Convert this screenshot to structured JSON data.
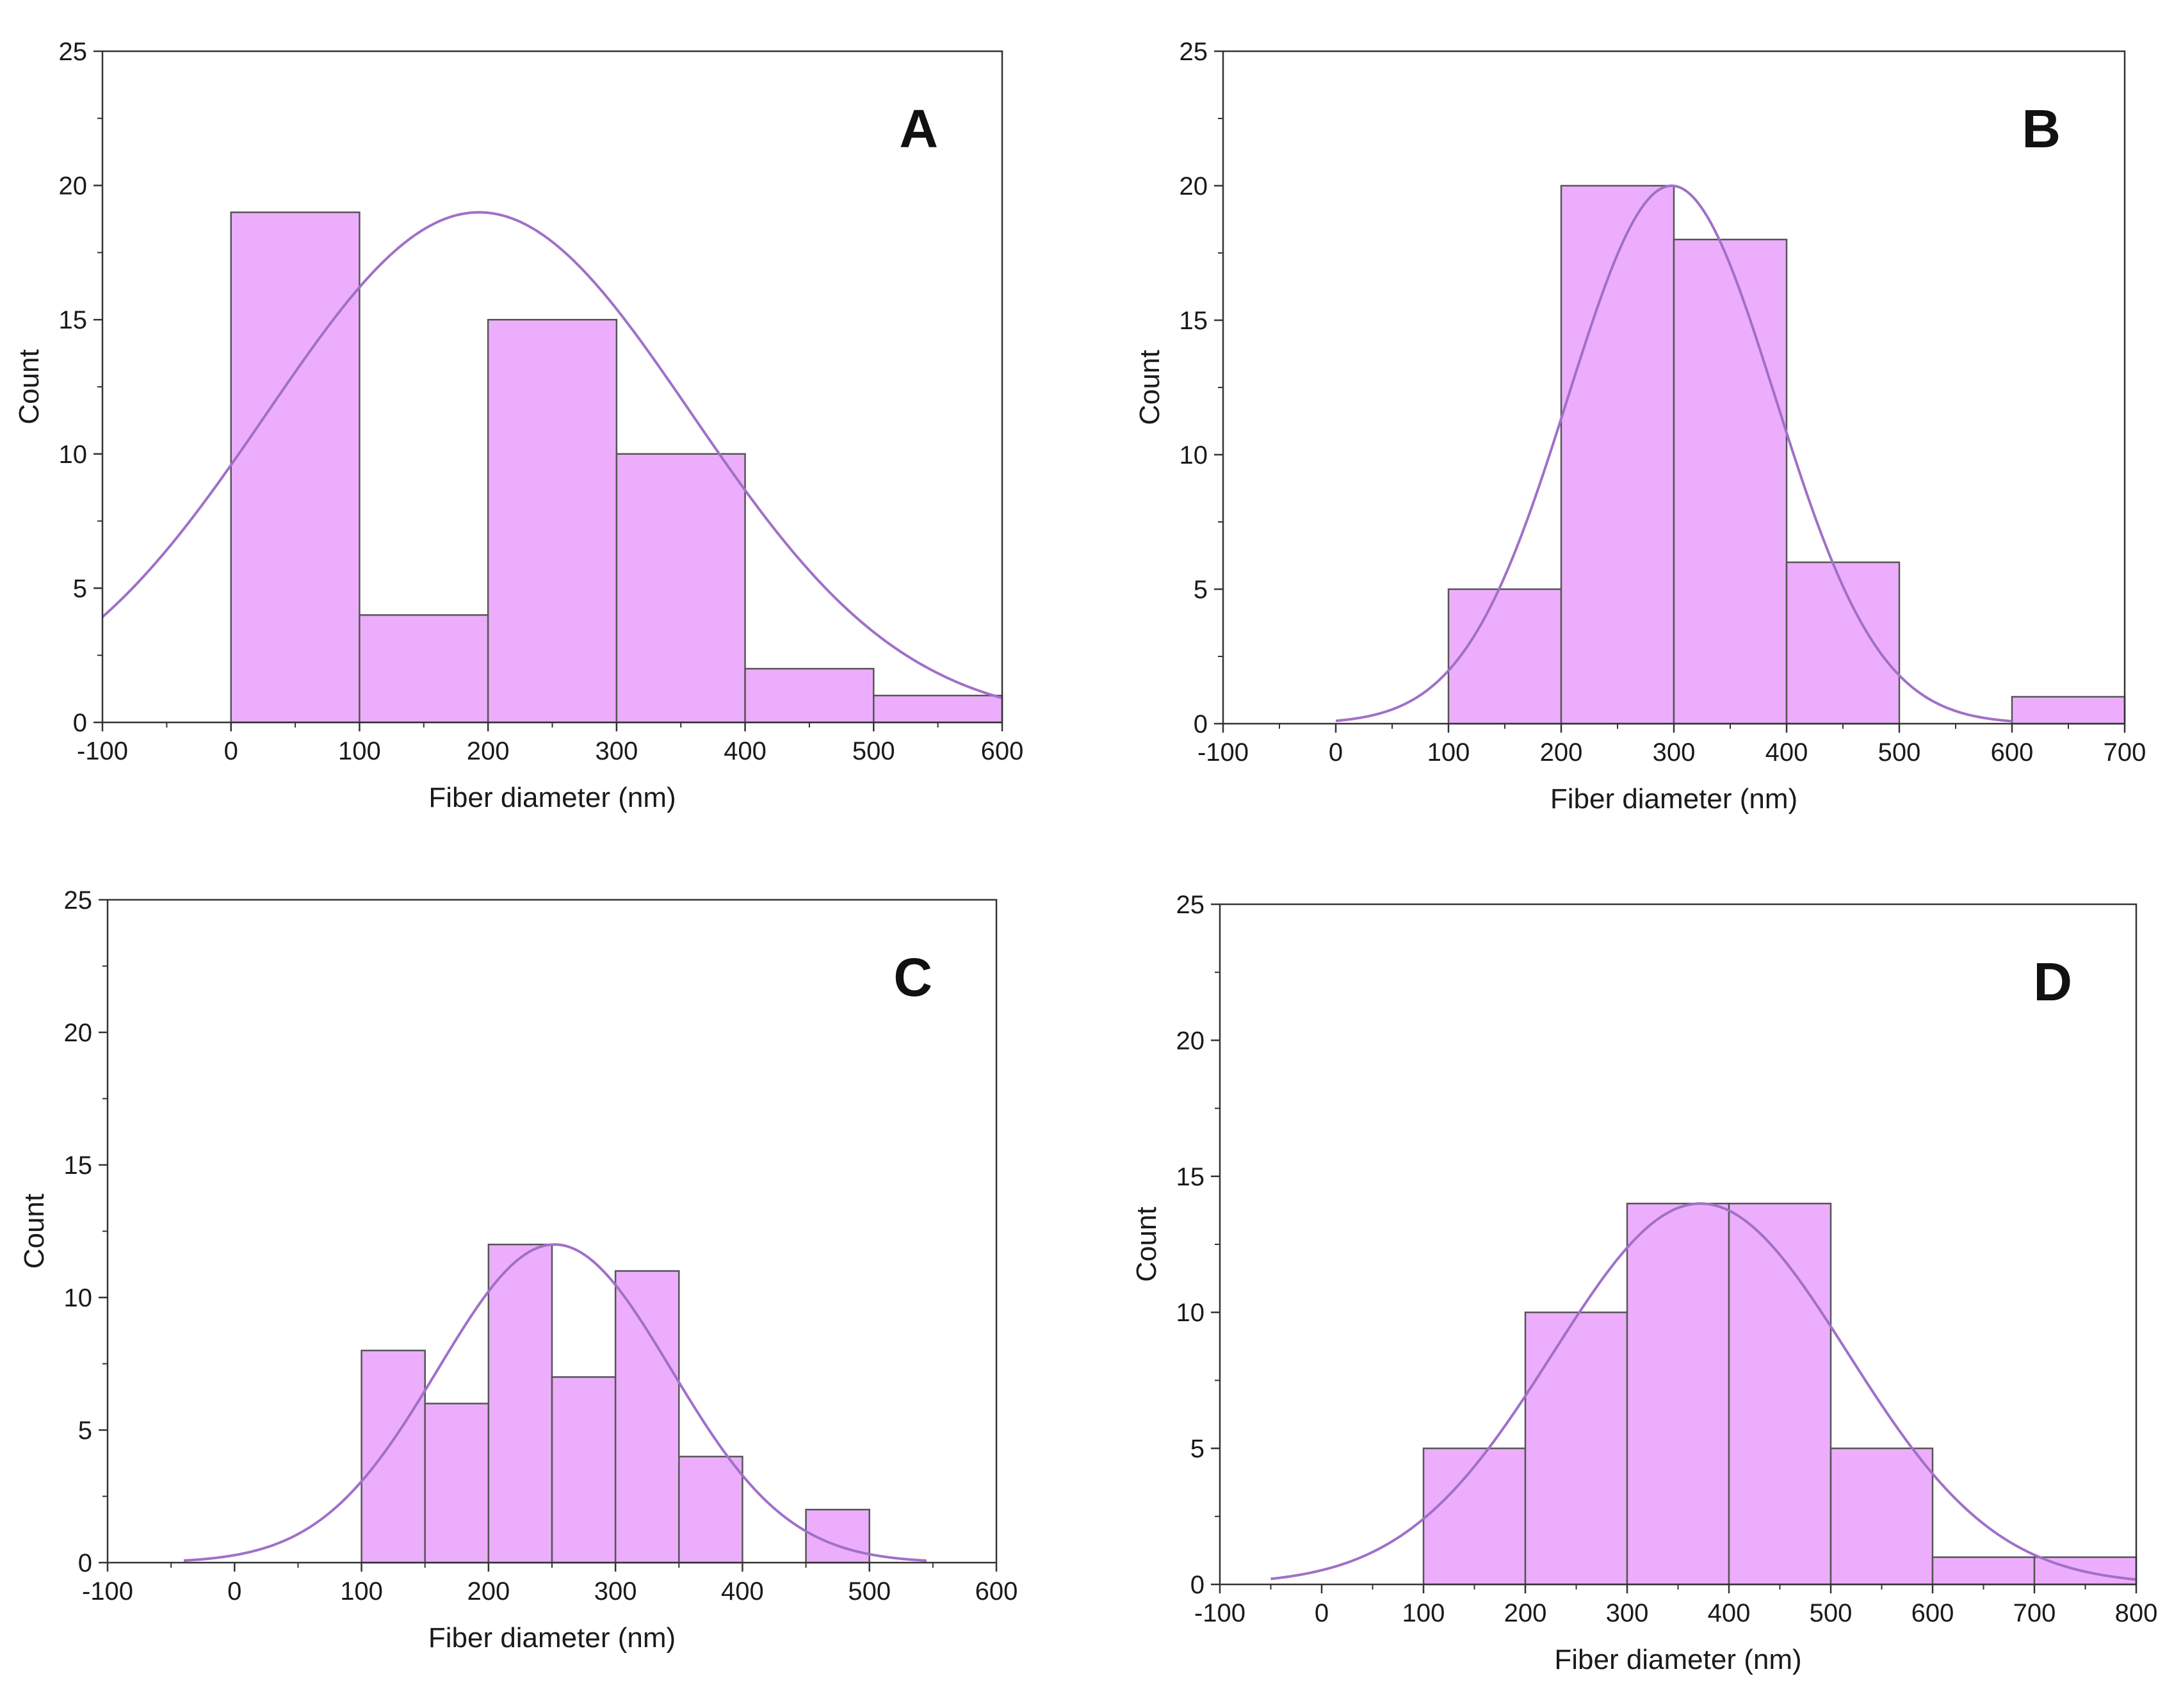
{
  "colors": {
    "bar_fill": "#ECAEFC",
    "bar_stroke": "#555555",
    "fit_curve": "#A070C8",
    "axis": "#333333"
  },
  "chart_data": [
    {
      "type": "bar",
      "panel_label": "A",
      "xlabel": "Fiber diameter (nm)",
      "ylabel": "Count",
      "xlim": [
        -100,
        600
      ],
      "ylim": [
        0,
        25
      ],
      "xticks": [
        "-100",
        "0",
        "100",
        "200",
        "300",
        "400",
        "500",
        "600"
      ],
      "yticks": [
        "0",
        "5",
        "10",
        "15",
        "20",
        "25"
      ],
      "bins": [
        {
          "x0": 0,
          "x1": 100,
          "count": 19
        },
        {
          "x0": 100,
          "x1": 200,
          "count": 4
        },
        {
          "x0": 200,
          "x1": 300,
          "count": 15
        },
        {
          "x0": 300,
          "x1": 400,
          "count": 10
        },
        {
          "x0": 400,
          "x1": 500,
          "count": 2
        },
        {
          "x0": 500,
          "x1": 600,
          "count": 1
        }
      ],
      "fit": {
        "type": "normal",
        "mean": 193,
        "sd": 165,
        "peak": 19,
        "x_range": [
          -100,
          600
        ]
      }
    },
    {
      "type": "bar",
      "panel_label": "B",
      "xlabel": "Fiber diameter (nm)",
      "ylabel": "Count",
      "xlim": [
        -100,
        700
      ],
      "ylim": [
        0,
        25
      ],
      "xticks": [
        "-100",
        "0",
        "100",
        "200",
        "300",
        "400",
        "500",
        "600",
        "700"
      ],
      "yticks": [
        "0",
        "5",
        "10",
        "15",
        "20",
        "25"
      ],
      "bins": [
        {
          "x0": 100,
          "x1": 200,
          "count": 5
        },
        {
          "x0": 200,
          "x1": 300,
          "count": 20
        },
        {
          "x0": 300,
          "x1": 400,
          "count": 18
        },
        {
          "x0": 400,
          "x1": 500,
          "count": 6
        },
        {
          "x0": 600,
          "x1": 700,
          "count": 1
        }
      ],
      "fit": {
        "type": "normal",
        "mean": 298,
        "sd": 92,
        "peak": 20,
        "x_range": [
          0,
          600
        ]
      }
    },
    {
      "type": "bar",
      "panel_label": "C",
      "xlabel": "Fiber diameter (nm)",
      "ylabel": "Count",
      "xlim": [
        -100,
        600
      ],
      "ylim": [
        0,
        25
      ],
      "xticks": [
        "-100",
        "0",
        "100",
        "200",
        "300",
        "400",
        "500",
        "600"
      ],
      "yticks": [
        "0",
        "5",
        "10",
        "15",
        "20",
        "25"
      ],
      "bins": [
        {
          "x0": 100,
          "x1": 150,
          "count": 8
        },
        {
          "x0": 150,
          "x1": 200,
          "count": 6
        },
        {
          "x0": 200,
          "x1": 250,
          "count": 12
        },
        {
          "x0": 250,
          "x1": 300,
          "count": 7
        },
        {
          "x0": 300,
          "x1": 350,
          "count": 11
        },
        {
          "x0": 350,
          "x1": 400,
          "count": 4
        },
        {
          "x0": 450,
          "x1": 500,
          "count": 2
        }
      ],
      "fit": {
        "type": "normal",
        "mean": 252,
        "sd": 92,
        "peak": 12,
        "x_range": [
          -40,
          545
        ]
      }
    },
    {
      "type": "bar",
      "panel_label": "D",
      "xlabel": "Fiber diameter (nm)",
      "ylabel": "Count",
      "xlim": [
        -100,
        800
      ],
      "ylim": [
        0,
        25
      ],
      "xticks": [
        "-100",
        "0",
        "100",
        "200",
        "300",
        "400",
        "500",
        "600",
        "700",
        "800"
      ],
      "yticks": [
        "0",
        "5",
        "10",
        "15",
        "20",
        "25"
      ],
      "bins": [
        {
          "x0": 100,
          "x1": 200,
          "count": 5
        },
        {
          "x0": 200,
          "x1": 300,
          "count": 10
        },
        {
          "x0": 300,
          "x1": 400,
          "count": 14
        },
        {
          "x0": 400,
          "x1": 500,
          "count": 14
        },
        {
          "x0": 500,
          "x1": 600,
          "count": 5
        },
        {
          "x0": 600,
          "x1": 700,
          "count": 1
        },
        {
          "x0": 700,
          "x1": 800,
          "count": 1
        }
      ],
      "fit": {
        "type": "normal",
        "mean": 372,
        "sd": 145,
        "peak": 14,
        "x_range": [
          -50,
          800
        ]
      }
    }
  ]
}
